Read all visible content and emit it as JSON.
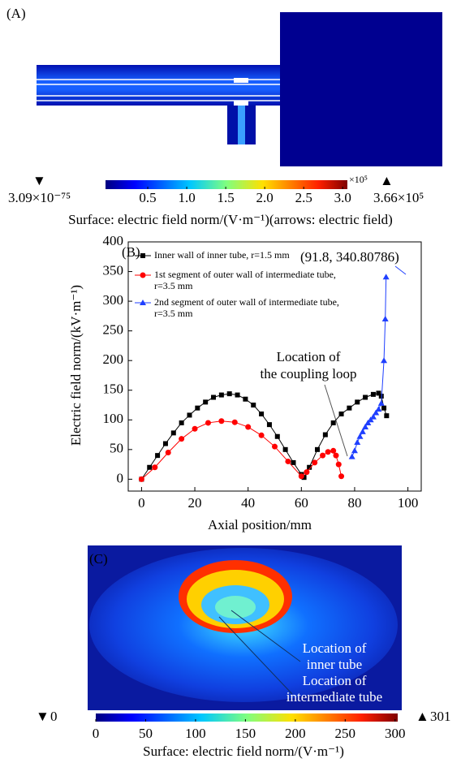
{
  "panel_a": {
    "label": "(A)",
    "colorbar": {
      "lim": [
        0,
        3.06
      ],
      "ticks": [
        {
          "value": 0.5,
          "label": "0.5"
        },
        {
          "value": 1.0,
          "label": "1.0"
        },
        {
          "value": 1.5,
          "label": "1.5"
        },
        {
          "value": 2.0,
          "label": "2.0"
        },
        {
          "value": 2.5,
          "label": "2.5"
        },
        {
          "value": 3.0,
          "label": "3.0"
        }
      ],
      "multiplier": "×10⁵",
      "min_label": "3.09×10⁻⁷⁵",
      "max_label": "3.66×10⁵"
    },
    "caption": "Surface: electric field norm/(V·m⁻¹)(arrows: electric field)"
  },
  "chart_data": {
    "type": "line",
    "label": "(B)",
    "x_label": "Axial position/mm",
    "y_label": "Electric field norm/(kV·m⁻¹)",
    "xlim": [
      -5,
      105
    ],
    "xticks": [
      0,
      20,
      40,
      60,
      80,
      100
    ],
    "ylim": [
      -20,
      400
    ],
    "yticks": [
      0,
      50,
      100,
      150,
      200,
      250,
      300,
      350,
      400
    ],
    "legend": "top-left",
    "series": [
      {
        "name": "Inner wall of inner tube, r=1.5 mm",
        "color": "#000000",
        "marker": "square",
        "x": [
          0,
          3,
          6,
          9,
          12,
          15,
          18,
          21,
          24,
          27,
          30,
          33,
          36,
          39,
          42,
          45,
          48,
          51,
          54,
          57,
          60,
          61,
          63,
          66,
          69,
          72,
          75,
          78,
          81,
          84,
          87,
          89,
          90,
          91,
          92
        ],
        "values": [
          0,
          20,
          40,
          60,
          78,
          95,
          108,
          120,
          130,
          138,
          142,
          144,
          142,
          135,
          125,
          110,
          92,
          72,
          50,
          28,
          8,
          3,
          20,
          50,
          75,
          95,
          110,
          120,
          130,
          138,
          143,
          145,
          140,
          120,
          107
        ]
      },
      {
        "name": "1st segment of outer wall of intermediate tube, r=3.5 mm",
        "color": "#ff0000",
        "marker": "circle",
        "x": [
          0,
          5,
          10,
          15,
          20,
          25,
          30,
          35,
          40,
          45,
          50,
          55,
          60,
          62,
          65,
          68,
          70,
          72,
          73,
          74,
          75
        ],
        "values": [
          0,
          20,
          45,
          68,
          85,
          95,
          98,
          96,
          88,
          74,
          55,
          30,
          5,
          12,
          28,
          40,
          46,
          48,
          40,
          25,
          5
        ]
      },
      {
        "name": "2nd segment of outer wall of intermediate tube, r=3.5 mm",
        "color": "#1f3fff",
        "marker": "triangle",
        "x": [
          79,
          80,
          81,
          82,
          83,
          84,
          85,
          86,
          87,
          88,
          89,
          90,
          91,
          91.5,
          91.8
        ],
        "values": [
          38,
          48,
          62,
          72,
          80,
          88,
          95,
          100,
          105,
          112,
          118,
          128,
          200,
          270,
          340.80786
        ]
      }
    ],
    "annotations": [
      "(91.8, 340.80786)",
      "Location of",
      "the coupling loop"
    ]
  },
  "panel_c": {
    "label": "(C)",
    "annotations": [
      "Location of",
      "inner tube",
      "Location of",
      "intermediate tube"
    ],
    "colorbar": {
      "lim": [
        0,
        301
      ],
      "ticks": [
        0,
        50,
        100,
        150,
        200,
        250,
        300
      ],
      "min_label": "0",
      "max_label": "301"
    },
    "caption": "Surface: electric field norm/(V·m⁻¹)"
  }
}
